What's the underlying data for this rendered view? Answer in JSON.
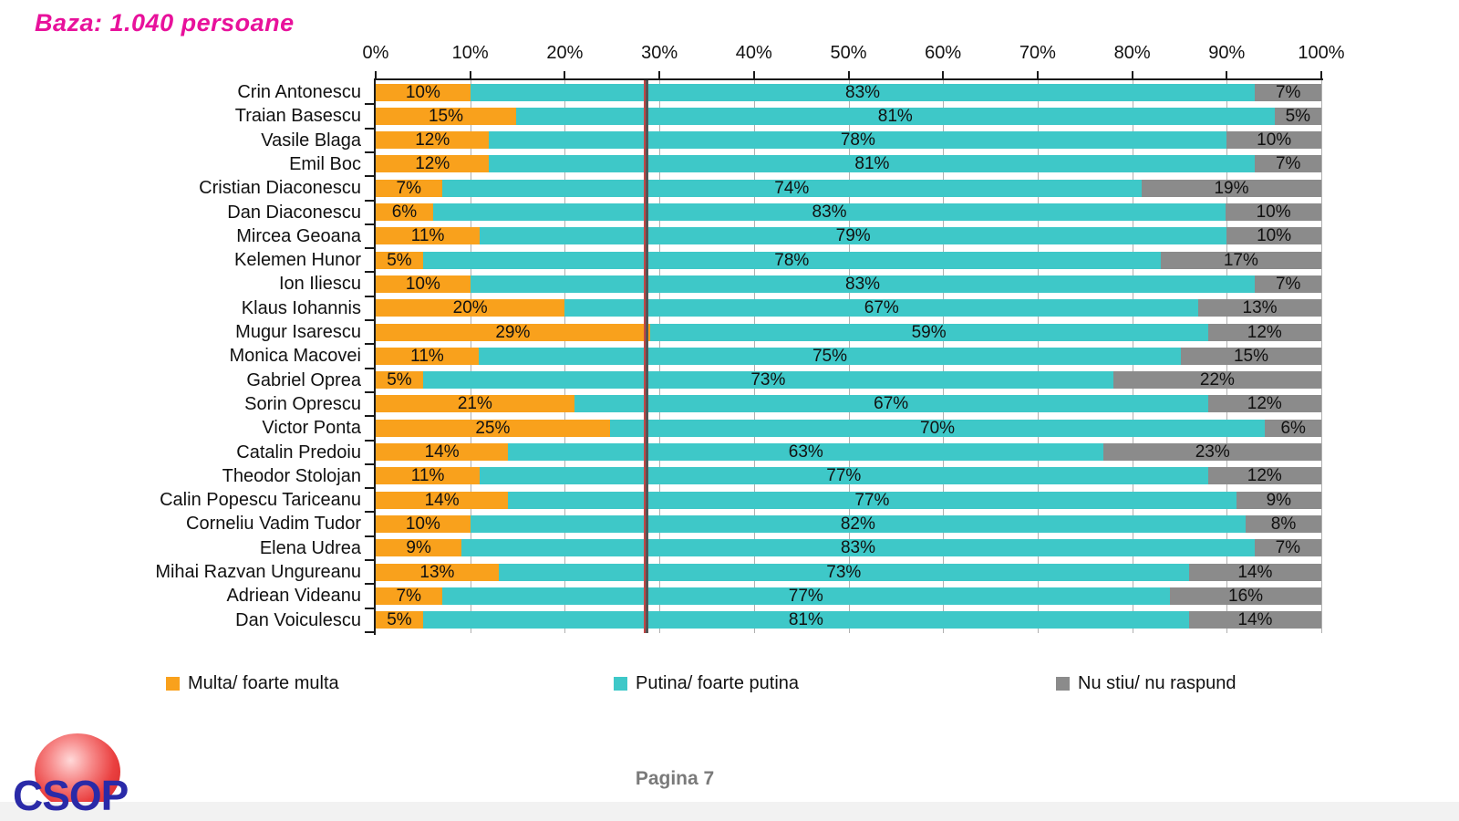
{
  "title": "Baza: 1.040 persoane",
  "footer": {
    "page_label": "Pagina 7"
  },
  "logo": {
    "text": "CSOP"
  },
  "colors": {
    "title_magenta": "#e8119b",
    "multa_orange": "#f9a11c",
    "putina_teal": "#3ec8c8",
    "nustiu_gray": "#8b8b8b",
    "reference_red": "#c04848",
    "reference_dark": "#555555",
    "logo_blue": "#2a2aa8",
    "footer_gray": "#7a7a7a"
  },
  "legend": [
    {
      "label": "Multa/ foarte multa",
      "color": "#f9a11c"
    },
    {
      "label": "Putina/ foarte putina",
      "color": "#3ec8c8"
    },
    {
      "label": "Nu stiu/ nu raspund",
      "color": "#8b8b8b"
    }
  ],
  "chart_data": {
    "type": "bar",
    "stacked": true,
    "orientation": "horizontal",
    "title": "Baza: 1.040 persoane",
    "value_suffix": "%",
    "x_axis": {
      "ticks": [
        "0%",
        "10%",
        "20%",
        "30%",
        "40%",
        "50%",
        "60%",
        "70%",
        "80%",
        "90%",
        "100%"
      ],
      "range": [
        0,
        100
      ],
      "gridlines": true
    },
    "reference_line_x": 29,
    "categories": [
      "Crin Antonescu",
      "Traian Basescu",
      "Vasile Blaga",
      "Emil Boc",
      "Cristian Diaconescu",
      "Dan Diaconescu",
      "Mircea Geoana",
      "Kelemen Hunor",
      "Ion Iliescu",
      "Klaus Iohannis",
      "Mugur Isarescu",
      "Monica Macovei",
      "Gabriel Oprea",
      "Sorin Oprescu",
      "Victor Ponta",
      "Catalin Predoiu",
      "Theodor Stolojan",
      "Calin Popescu Tariceanu",
      "Corneliu Vadim Tudor",
      "Elena Udrea",
      "Mihai Razvan Ungureanu",
      "Adriean Videanu",
      "Dan Voiculescu"
    ],
    "series": [
      {
        "name": "Multa/ foarte multa",
        "color": "#f9a11c",
        "values": [
          10,
          15,
          12,
          12,
          7,
          6,
          11,
          5,
          10,
          20,
          29,
          11,
          5,
          21,
          25,
          14,
          11,
          14,
          10,
          9,
          13,
          7,
          5
        ]
      },
      {
        "name": "Putina/ foarte putina",
        "color": "#3ec8c8",
        "values": [
          83,
          81,
          78,
          81,
          74,
          83,
          79,
          78,
          83,
          67,
          59,
          75,
          73,
          67,
          70,
          63,
          77,
          77,
          82,
          83,
          73,
          77,
          81
        ]
      },
      {
        "name": "Nu stiu/ nu raspund",
        "color": "#8b8b8b",
        "values": [
          7,
          5,
          10,
          7,
          19,
          10,
          10,
          17,
          7,
          13,
          12,
          15,
          22,
          12,
          6,
          23,
          12,
          9,
          8,
          7,
          14,
          16,
          14
        ]
      }
    ]
  }
}
